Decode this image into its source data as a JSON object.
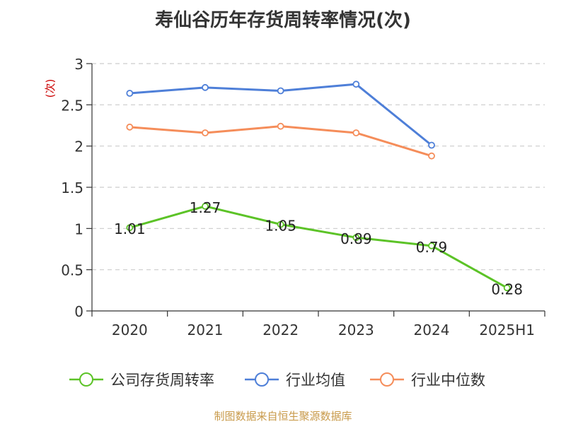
{
  "chart_data": {
    "type": "line",
    "title": "寿仙谷历年存货周转率情况(次)",
    "ylabel": "(次)",
    "xlabel": "",
    "categories": [
      "2020",
      "2021",
      "2022",
      "2023",
      "2024",
      "2025H1"
    ],
    "y_ticks": [
      "0",
      "0.5",
      "1",
      "1.5",
      "2",
      "2.5",
      "3"
    ],
    "ylim": [
      0,
      3
    ],
    "grid": true,
    "legend_position": "bottom",
    "series": [
      {
        "name": "公司存货周转率",
        "color": "#5cc327",
        "values": [
          1.01,
          1.27,
          1.05,
          0.89,
          0.79,
          0.28
        ],
        "labels": [
          "1.01",
          "1.27",
          "1.05",
          "0.89",
          "0.79",
          "0.28"
        ]
      },
      {
        "name": "行业均值",
        "color": "#4e7fd8",
        "values": [
          2.64,
          2.71,
          2.67,
          2.75,
          2.01,
          null
        ]
      },
      {
        "name": "行业中位数",
        "color": "#f58d5a",
        "values": [
          2.23,
          2.16,
          2.24,
          2.16,
          1.88,
          null
        ]
      }
    ]
  },
  "source": "制图数据来自恒生聚源数据库"
}
